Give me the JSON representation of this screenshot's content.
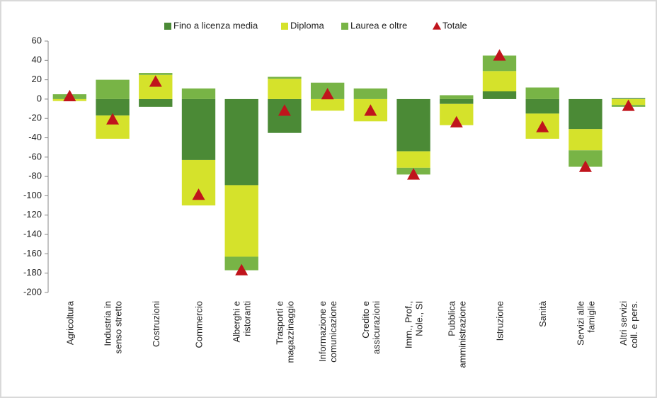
{
  "chart_data": {
    "type": "bar",
    "stacked": true,
    "categories": [
      "Agricoltura",
      "Industria in\nsenso stretto",
      "Costruzioni",
      "Commercio",
      "Alberghi e\nristoranti",
      "Trasporti e\nmagazzinaggio",
      "Informazione e\ncomunicazione",
      "Credito e\nassicurazioni",
      "Imm., Prof.,\nNole., SI",
      "Pubblica\namministrazione",
      "Istruzione",
      "Sanità",
      "Servizi alle\nfamiglie",
      "Altri servizi\ncoll. e pers."
    ],
    "series": [
      {
        "name": "Fino a licenza media",
        "color": "#4b8a36",
        "values": [
          0,
          -17,
          -8,
          -63,
          -89,
          -35,
          0,
          0,
          -54,
          -5,
          8,
          -15,
          -31,
          1
        ]
      },
      {
        "name": "Diploma",
        "color": "#d5e22b",
        "values": [
          -2,
          -24,
          25,
          -47,
          -74,
          21,
          -12,
          -23,
          -17,
          -22,
          21,
          -26,
          -22,
          -6
        ]
      },
      {
        "name": "Laurea e oltre",
        "color": "#78b446",
        "values": [
          5,
          20,
          2,
          11,
          -14,
          2,
          17,
          11,
          -7,
          4,
          16,
          12,
          -17,
          -2
        ]
      }
    ],
    "total": {
      "name": "Totale",
      "color": "#c0141c",
      "values": [
        3,
        -21,
        18,
        -99,
        -177,
        -12,
        5,
        -12,
        -78,
        -24,
        45,
        -29,
        -70,
        -7
      ]
    },
    "ylim": [
      -200,
      60
    ],
    "yticks": [
      -200,
      -180,
      -160,
      -140,
      -120,
      -100,
      -80,
      -60,
      -40,
      -20,
      0,
      20,
      40,
      60
    ]
  }
}
